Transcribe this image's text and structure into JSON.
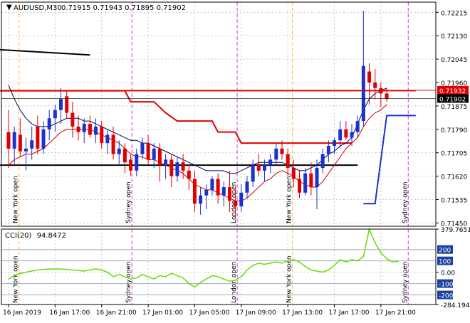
{
  "header": {
    "symbol": "AUDUSD,M30",
    "ohlc": "0.71915 0.71943 0.71895 0.71902",
    "menu_arrow": "triangle-down-icon"
  },
  "colors": {
    "bull": "#1a33cc",
    "bear": "#e00000",
    "ma_fast": "#cc0000",
    "ma_slow": "#000066",
    "support_line": "#000000",
    "trail_line": "#e00000",
    "cci_line": "#66dd00",
    "grid": "#c8c8c8",
    "session_orange": "#ffbb44",
    "session_purple": "#cc44cc",
    "price_red_label": "#e00000",
    "price_black_label": "#000000"
  },
  "chart_data": [
    {
      "type": "candlestick",
      "title": "AUDUSD,M30",
      "price_axis_ticks": [
        "0.72215",
        "0.72130",
        "0.72045",
        "0.71960",
        "0.71875",
        "0.71790",
        "0.71705",
        "0.71620",
        "0.71535",
        "0.71450"
      ],
      "ylim": [
        0.71438,
        0.72252
      ],
      "price_labels": [
        {
          "value": 0.71932,
          "text": "0.71932",
          "style": "red"
        },
        {
          "value": 0.71902,
          "text": "0.71902",
          "style": "black"
        }
      ],
      "time_ticks": [
        {
          "label": "16 Jan 2019",
          "index": 0
        },
        {
          "label": "16 Jan 17:00",
          "index": 8
        },
        {
          "label": "16 Jan 21:00",
          "index": 16
        },
        {
          "label": "17 Jan 01:00",
          "index": 24
        },
        {
          "label": "17 Jan 05:00",
          "index": 32
        },
        {
          "label": "17 Jan 09:00",
          "index": 40
        },
        {
          "label": "17 Jan 13:00",
          "index": 48
        },
        {
          "label": "17 Jan 17:00",
          "index": 56
        },
        {
          "label": "17 Jan 21:00",
          "index": 64
        }
      ],
      "sessions": [
        {
          "label": "New York open",
          "index": 1.8,
          "color": "orange"
        },
        {
          "label": "Sydney open",
          "index": 21.2,
          "color": "purple"
        },
        {
          "label": "London open",
          "index": 39.3,
          "color": "purple"
        },
        {
          "label": "New York open",
          "index": 48.8,
          "color": "orange"
        },
        {
          "label": "Sydney open",
          "index": 68.7,
          "color": "purple"
        }
      ],
      "candles": [
        {
          "o": 0.7178,
          "h": 0.7186,
          "l": 0.7165,
          "c": 0.7172
        },
        {
          "o": 0.7172,
          "h": 0.718,
          "l": 0.7166,
          "c": 0.7178
        },
        {
          "o": 0.7177,
          "h": 0.7183,
          "l": 0.7169,
          "c": 0.7171
        },
        {
          "o": 0.7171,
          "h": 0.7176,
          "l": 0.7164,
          "c": 0.7172
        },
        {
          "o": 0.7172,
          "h": 0.718,
          "l": 0.7168,
          "c": 0.7175
        },
        {
          "o": 0.718,
          "h": 0.7184,
          "l": 0.717,
          "c": 0.7172
        },
        {
          "o": 0.7172,
          "h": 0.7182,
          "l": 0.717,
          "c": 0.7179
        },
        {
          "o": 0.7179,
          "h": 0.7186,
          "l": 0.7175,
          "c": 0.7183
        },
        {
          "o": 0.7183,
          "h": 0.7188,
          "l": 0.7178,
          "c": 0.7186
        },
        {
          "o": 0.7186,
          "h": 0.7194,
          "l": 0.7181,
          "c": 0.719
        },
        {
          "o": 0.7191,
          "h": 0.7193,
          "l": 0.7183,
          "c": 0.7185
        },
        {
          "o": 0.7185,
          "h": 0.7189,
          "l": 0.7176,
          "c": 0.718
        },
        {
          "o": 0.718,
          "h": 0.7184,
          "l": 0.7175,
          "c": 0.7178
        },
        {
          "o": 0.7178,
          "h": 0.7183,
          "l": 0.7174,
          "c": 0.7181
        },
        {
          "o": 0.7181,
          "h": 0.7184,
          "l": 0.7176,
          "c": 0.7177
        },
        {
          "o": 0.7177,
          "h": 0.7183,
          "l": 0.7174,
          "c": 0.718
        },
        {
          "o": 0.718,
          "h": 0.7182,
          "l": 0.7172,
          "c": 0.7174
        },
        {
          "o": 0.7174,
          "h": 0.7179,
          "l": 0.717,
          "c": 0.7177
        },
        {
          "o": 0.7177,
          "h": 0.718,
          "l": 0.7168,
          "c": 0.717
        },
        {
          "o": 0.717,
          "h": 0.7175,
          "l": 0.7166,
          "c": 0.7172
        },
        {
          "o": 0.7172,
          "h": 0.7174,
          "l": 0.7163,
          "c": 0.7167
        },
        {
          "o": 0.7168,
          "h": 0.717,
          "l": 0.7162,
          "c": 0.7164
        },
        {
          "o": 0.7164,
          "h": 0.7172,
          "l": 0.7162,
          "c": 0.717
        },
        {
          "o": 0.717,
          "h": 0.7176,
          "l": 0.7168,
          "c": 0.7174
        },
        {
          "o": 0.7174,
          "h": 0.7177,
          "l": 0.7166,
          "c": 0.7168
        },
        {
          "o": 0.7168,
          "h": 0.7174,
          "l": 0.7165,
          "c": 0.7172
        },
        {
          "o": 0.7172,
          "h": 0.7174,
          "l": 0.716,
          "c": 0.7166
        },
        {
          "o": 0.7166,
          "h": 0.717,
          "l": 0.7161,
          "c": 0.7168
        },
        {
          "o": 0.7168,
          "h": 0.717,
          "l": 0.7158,
          "c": 0.7162
        },
        {
          "o": 0.7162,
          "h": 0.7169,
          "l": 0.716,
          "c": 0.7167
        },
        {
          "o": 0.7167,
          "h": 0.717,
          "l": 0.7161,
          "c": 0.7164
        },
        {
          "o": 0.7164,
          "h": 0.7166,
          "l": 0.7157,
          "c": 0.7161
        },
        {
          "o": 0.7161,
          "h": 0.7164,
          "l": 0.7149,
          "c": 0.7152
        },
        {
          "o": 0.7152,
          "h": 0.7158,
          "l": 0.7148,
          "c": 0.7155
        },
        {
          "o": 0.7155,
          "h": 0.7159,
          "l": 0.715,
          "c": 0.7157
        },
        {
          "o": 0.7157,
          "h": 0.7162,
          "l": 0.7155,
          "c": 0.7161
        },
        {
          "o": 0.7161,
          "h": 0.7163,
          "l": 0.7152,
          "c": 0.7155
        },
        {
          "o": 0.7155,
          "h": 0.716,
          "l": 0.7151,
          "c": 0.7158
        },
        {
          "o": 0.7158,
          "h": 0.7164,
          "l": 0.7149,
          "c": 0.7153
        },
        {
          "o": 0.7153,
          "h": 0.7158,
          "l": 0.7147,
          "c": 0.7151
        },
        {
          "o": 0.7151,
          "h": 0.7159,
          "l": 0.7149,
          "c": 0.7156
        },
        {
          "o": 0.7156,
          "h": 0.7162,
          "l": 0.7154,
          "c": 0.716
        },
        {
          "o": 0.716,
          "h": 0.7168,
          "l": 0.7158,
          "c": 0.7166
        },
        {
          "o": 0.7166,
          "h": 0.717,
          "l": 0.7162,
          "c": 0.7164
        },
        {
          "o": 0.7164,
          "h": 0.7168,
          "l": 0.716,
          "c": 0.7166
        },
        {
          "o": 0.7166,
          "h": 0.717,
          "l": 0.7163,
          "c": 0.7168
        },
        {
          "o": 0.7168,
          "h": 0.7174,
          "l": 0.7166,
          "c": 0.7172
        },
        {
          "o": 0.7172,
          "h": 0.7175,
          "l": 0.7168,
          "c": 0.717
        },
        {
          "o": 0.717,
          "h": 0.7172,
          "l": 0.7162,
          "c": 0.7165
        },
        {
          "o": 0.7165,
          "h": 0.7168,
          "l": 0.7158,
          "c": 0.7161
        },
        {
          "o": 0.7161,
          "h": 0.7164,
          "l": 0.7154,
          "c": 0.7156
        },
        {
          "o": 0.7156,
          "h": 0.7165,
          "l": 0.7155,
          "c": 0.7163
        },
        {
          "o": 0.7163,
          "h": 0.7167,
          "l": 0.7155,
          "c": 0.7158
        },
        {
          "o": 0.7158,
          "h": 0.7168,
          "l": 0.715,
          "c": 0.7165
        },
        {
          "o": 0.7165,
          "h": 0.7172,
          "l": 0.7163,
          "c": 0.717
        },
        {
          "o": 0.717,
          "h": 0.7175,
          "l": 0.7167,
          "c": 0.7173
        },
        {
          "o": 0.7173,
          "h": 0.7176,
          "l": 0.717,
          "c": 0.7175
        },
        {
          "o": 0.7175,
          "h": 0.7182,
          "l": 0.7172,
          "c": 0.7179
        },
        {
          "o": 0.7179,
          "h": 0.7182,
          "l": 0.7175,
          "c": 0.7176
        },
        {
          "o": 0.7176,
          "h": 0.7181,
          "l": 0.7173,
          "c": 0.7178
        },
        {
          "o": 0.7178,
          "h": 0.7184,
          "l": 0.7176,
          "c": 0.7182
        },
        {
          "o": 0.7182,
          "h": 0.7222,
          "l": 0.718,
          "c": 0.7202
        },
        {
          "o": 0.72,
          "h": 0.7203,
          "l": 0.7188,
          "c": 0.7196
        },
        {
          "o": 0.7196,
          "h": 0.7201,
          "l": 0.719,
          "c": 0.7194
        },
        {
          "o": 0.7194,
          "h": 0.7196,
          "l": 0.7187,
          "c": 0.7192
        },
        {
          "o": 0.7192,
          "h": 0.7194,
          "l": 0.7189,
          "c": 0.719
        }
      ],
      "ma_fast": [
        0.7166,
        0.7168,
        0.7169,
        0.717,
        0.717,
        0.7171,
        0.7172,
        0.7174,
        0.7176,
        0.7178,
        0.7179,
        0.7179,
        0.7179,
        0.7179,
        0.7179,
        0.7178,
        0.7177,
        0.7176,
        0.7175,
        0.7174,
        0.7172,
        0.717,
        0.7169,
        0.7169,
        0.7168,
        0.7168,
        0.7167,
        0.7166,
        0.7165,
        0.7164,
        0.7163,
        0.7161,
        0.7159,
        0.7158,
        0.7157,
        0.7157,
        0.7156,
        0.7155,
        0.7154,
        0.7153,
        0.7153,
        0.7154,
        0.7156,
        0.7158,
        0.716,
        0.7161,
        0.7163,
        0.7164,
        0.7163,
        0.7162,
        0.716,
        0.7159,
        0.7158,
        0.7158,
        0.716,
        0.7163,
        0.7166,
        0.7169,
        0.7172,
        0.7174,
        0.7176,
        0.718,
        0.7183,
        0.7185,
        0.7186,
        0.7188
      ],
      "ma_slow": [
        0.7195,
        0.719,
        0.7186,
        0.7183,
        0.7181,
        0.718,
        0.718,
        0.718,
        0.7181,
        0.7182,
        0.7183,
        0.7183,
        0.7183,
        0.7182,
        0.7182,
        0.7181,
        0.718,
        0.7179,
        0.7178,
        0.7177,
        0.7176,
        0.7175,
        0.7175,
        0.7174,
        0.7174,
        0.7173,
        0.7172,
        0.7171,
        0.717,
        0.7169,
        0.7168,
        0.7167,
        0.7166,
        0.7165,
        0.7164,
        0.7164,
        0.7164,
        0.7164,
        0.7163,
        0.7163,
        0.7164,
        0.7165,
        0.7166,
        0.7167,
        0.7167,
        0.7167,
        0.7167,
        0.7167,
        0.7166,
        0.7165,
        0.7164,
        0.7164,
        0.7165,
        0.7166,
        0.7168,
        0.717,
        0.7171,
        0.7173,
        0.7174,
        0.7176,
        0.7181,
        0.7186,
        0.719,
        0.7192,
        0.7193,
        0.7194
      ],
      "lines": [
        {
          "kind": "support",
          "from": [
            -2,
            0.7166
          ],
          "to": [
            60,
            0.7166
          ]
        },
        {
          "kind": "black_segment",
          "from": [
            -2,
            0.7208
          ],
          "to": [
            14,
            0.7206
          ]
        }
      ],
      "trail": [
        [
          -2,
          0.7193
        ],
        [
          20,
          0.7193
        ],
        [
          21,
          0.7189
        ],
        [
          25,
          0.7189
        ],
        [
          27,
          0.7185
        ],
        [
          29,
          0.7182
        ],
        [
          35,
          0.7182
        ],
        [
          36,
          0.7178
        ],
        [
          39,
          0.7178
        ],
        [
          40,
          0.7174
        ],
        [
          59,
          0.7174
        ]
      ],
      "breakout_line": [
        [
          61,
          0.7152
        ],
        [
          63,
          0.7152
        ],
        [
          65,
          0.7184
        ],
        [
          70,
          0.7184
        ]
      ],
      "resistance_line": [
        [
          -2,
          0.7193
        ],
        [
          70,
          0.7193
        ]
      ]
    },
    {
      "type": "line",
      "title": "CCI(20) 94.8472",
      "indicator": "CCI(20)",
      "value_label": "94.8472",
      "axis_ticks": [
        "379.7651",
        "200",
        "100",
        "0.00",
        "-100",
        "-200",
        "-284.1944"
      ],
      "levels": [
        200,
        100,
        0,
        -100,
        -200
      ],
      "ylim": [
        -284.1944,
        379.7651
      ],
      "values": [
        -60,
        -30,
        -10,
        0,
        10,
        20,
        25,
        28,
        30,
        28,
        25,
        20,
        15,
        10,
        20,
        30,
        20,
        0,
        -40,
        -20,
        -40,
        -60,
        -50,
        -20,
        -40,
        -60,
        -30,
        -40,
        -10,
        -30,
        -50,
        -100,
        -130,
        -90,
        -60,
        -30,
        -40,
        -60,
        -80,
        -70,
        -40,
        20,
        60,
        80,
        70,
        80,
        90,
        80,
        100,
        110,
        90,
        50,
        20,
        10,
        0,
        20,
        60,
        110,
        90,
        110,
        100,
        140,
        380,
        260,
        170,
        120,
        90,
        95
      ]
    }
  ]
}
